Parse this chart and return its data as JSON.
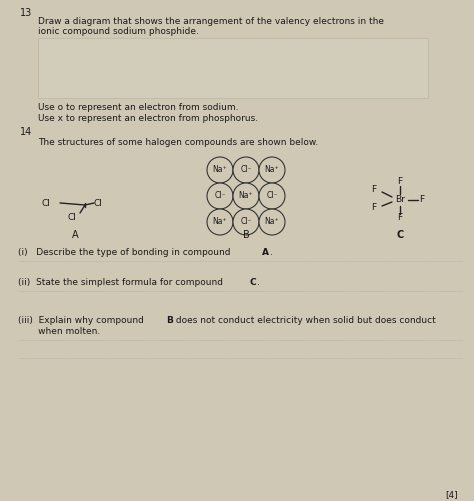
{
  "bg_color": "#cec8b5",
  "text_color": "#1a1a1a",
  "title_num": "13",
  "q13_line1": "Draw a diagram that shows the arrangement of the valency electrons in the",
  "q13_line2": "ionic compound sodium phosphide.",
  "note1": "Use o to represent an electron from sodium.",
  "note2": "Use x to represent an electron from phosphorus.",
  "title_num2": "14",
  "q14_intro": "The structures of some halogen compounds are shown below.",
  "label_A": "A",
  "label_B": "B",
  "label_C": "C",
  "qi_text": "(i)   Describe the type of bonding in compound ",
  "qi_bold": "A",
  "qi_end": ".",
  "qii_text": "(ii)  State the simplest formula for compound ",
  "qii_bold": "C",
  "qii_end": ".",
  "qiii_line1a": "(iii)  Explain why compound ",
  "qiii_bold": "B",
  "qiii_line1b": " does not conduct electricity when solid but does conduct",
  "qiii_line2": "       when molten.",
  "marks": "[4]",
  "dotted_color": "#999999",
  "circle_face": "#cec8b5",
  "circle_edge": "#333333"
}
